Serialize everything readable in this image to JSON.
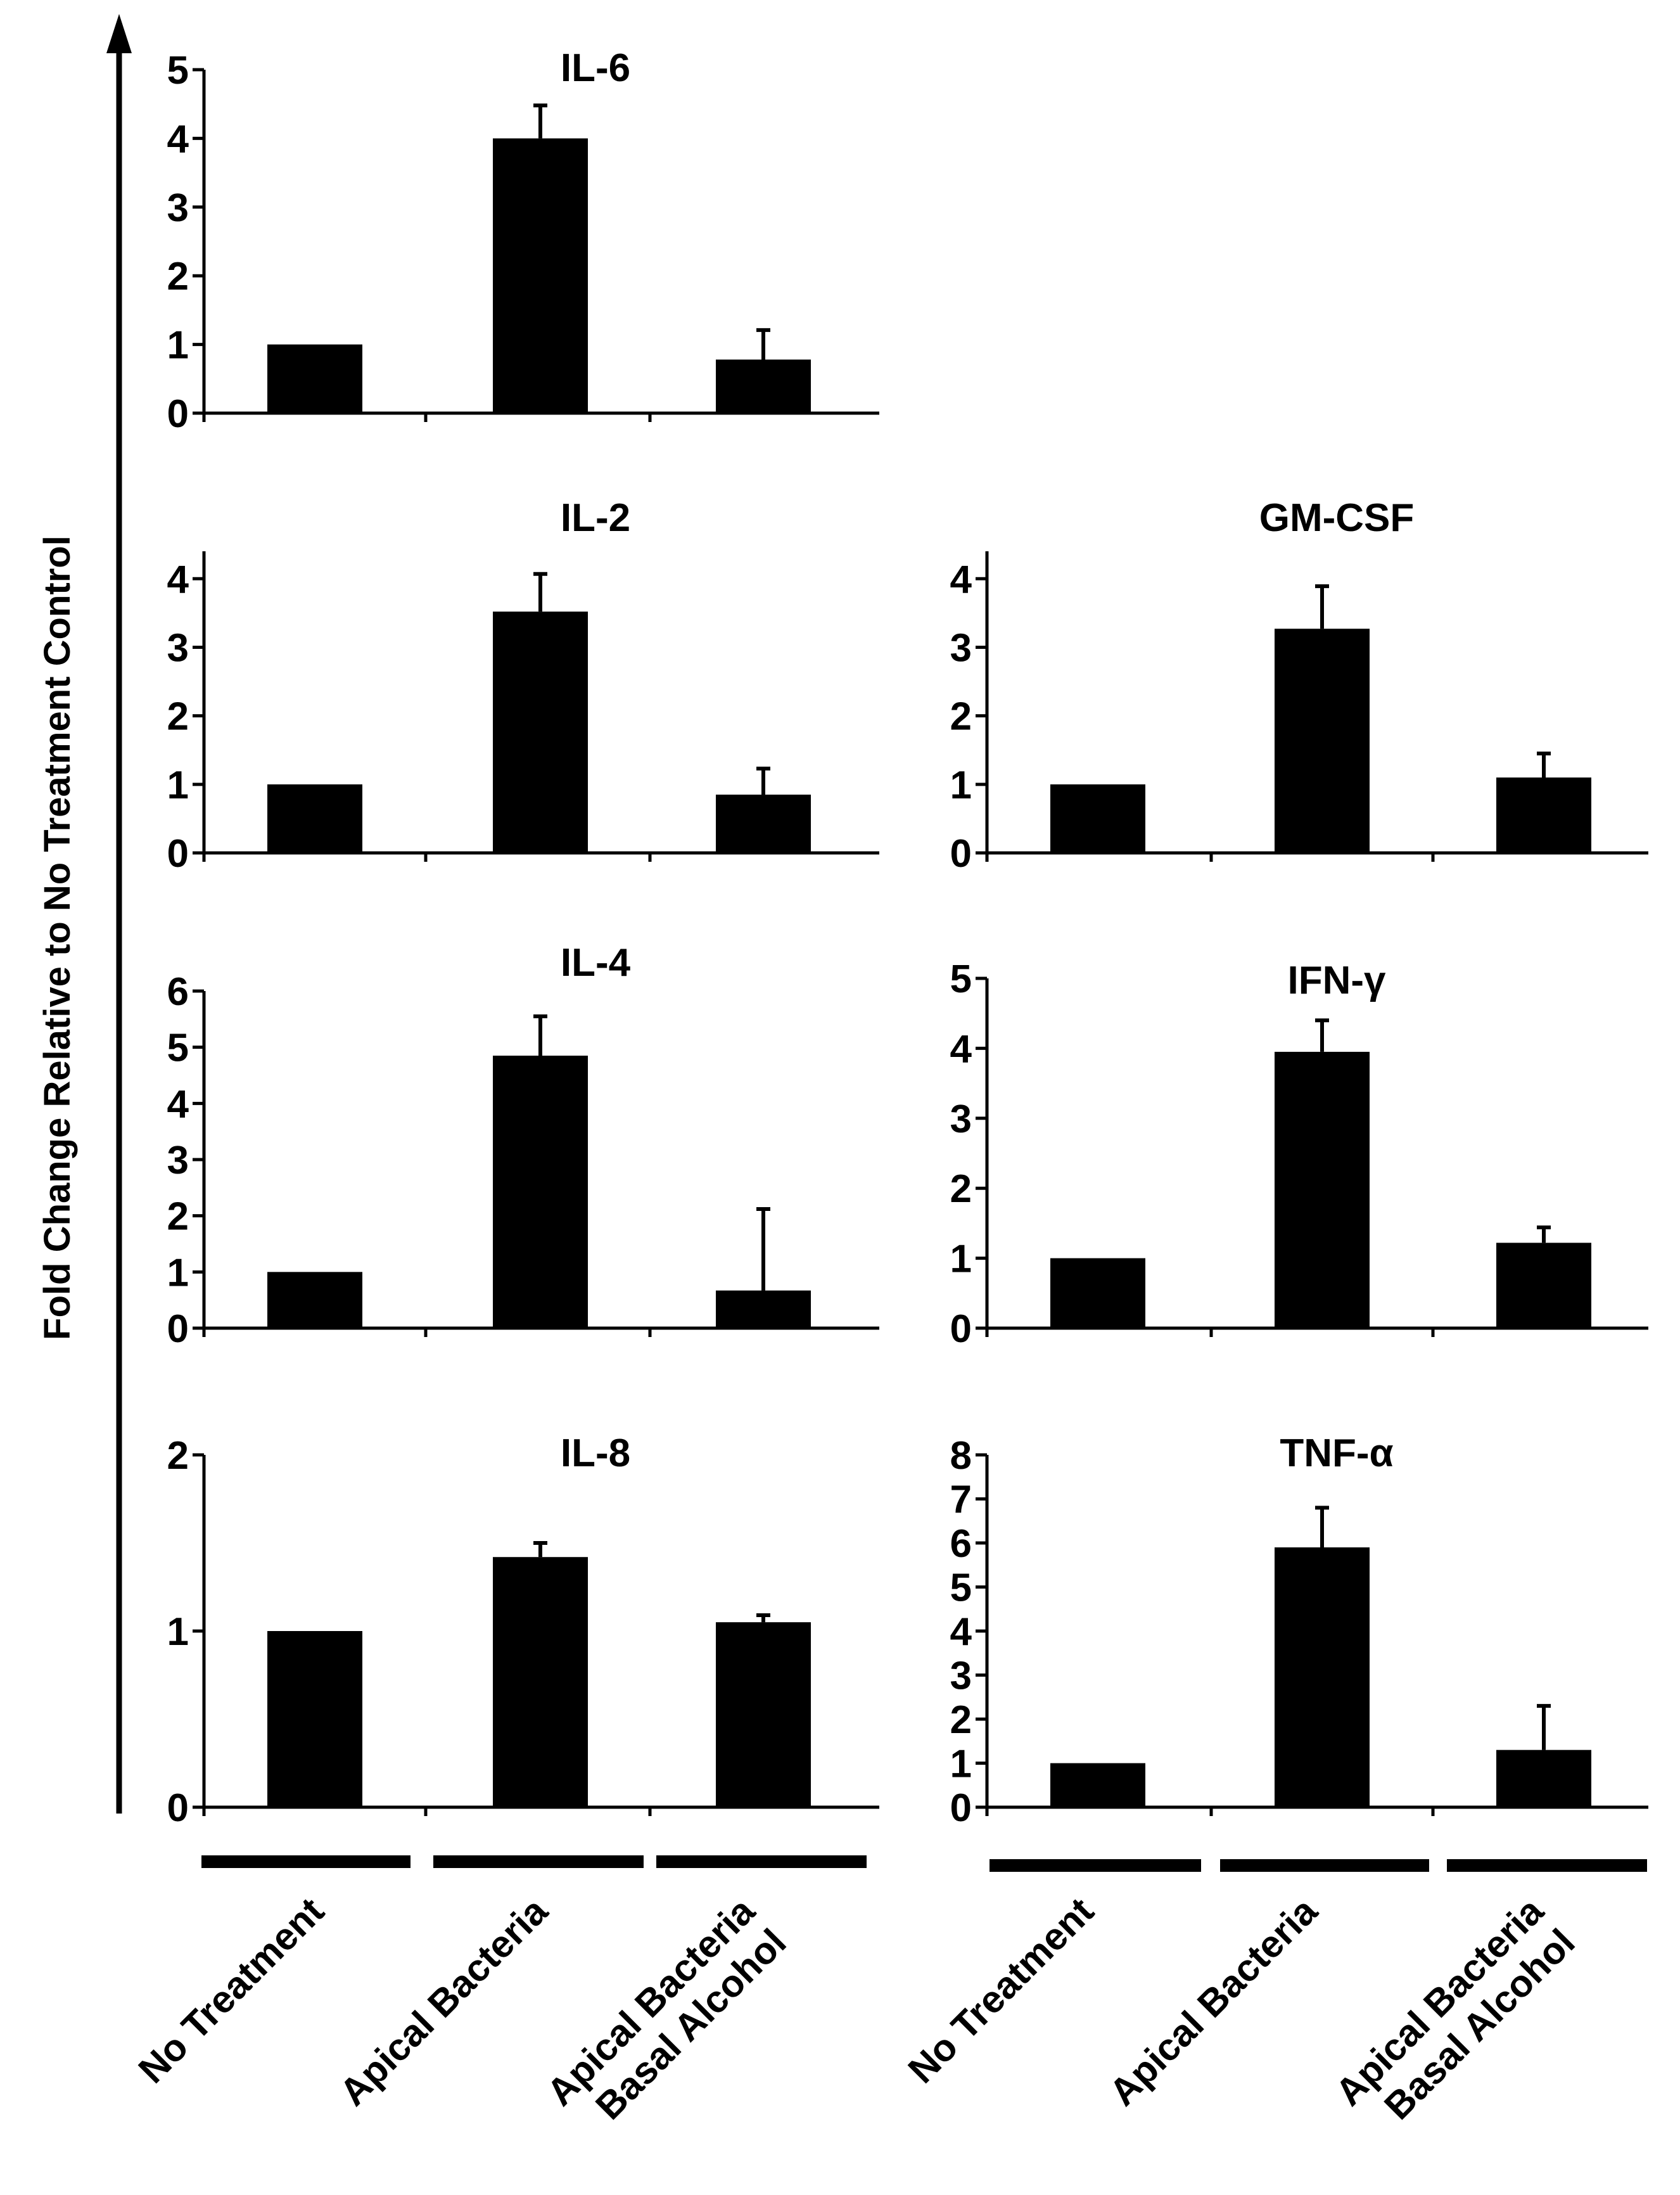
{
  "y_axis_label": "Fold Change Relative to No Treatment Control",
  "groups": [
    {
      "categories": [
        "No Treatment",
        "Apical Bacteria",
        [
          "Apical Bacteria",
          "Basal Alcohol"
        ]
      ]
    },
    {
      "categories": [
        "No Treatment",
        "Apical Bacteria",
        [
          "Apical Bacteria",
          "Basal Alcohol"
        ]
      ]
    }
  ],
  "colors": {
    "bar": "#000000",
    "axis": "#000000",
    "background": "#ffffff"
  },
  "chart_data": [
    {
      "type": "bar",
      "title": "IL-6",
      "categories": [
        "No Treatment",
        "Apical Bacteria",
        "Apical Bacteria Basal Alcohol"
      ],
      "values": [
        1.0,
        4.0,
        0.78
      ],
      "errors": [
        0,
        0.48,
        0.43
      ],
      "ylim": [
        0,
        5
      ],
      "yticks": [
        0,
        1,
        2,
        3,
        4,
        5
      ],
      "ylabel": "Fold Change Relative to No Treatment Control"
    },
    {
      "type": "bar",
      "title": "IL-2",
      "categories": [
        "No Treatment",
        "Apical Bacteria",
        "Apical Bacteria Basal Alcohol"
      ],
      "values": [
        1.0,
        3.52,
        0.85
      ],
      "errors": [
        0,
        0.55,
        0.38
      ],
      "ylim": [
        0,
        4.4
      ],
      "yticks": [
        0,
        1,
        2,
        3,
        4
      ],
      "ylabel": "Fold Change Relative to No Treatment Control"
    },
    {
      "type": "bar",
      "title": "GM-CSF",
      "categories": [
        "No Treatment",
        "Apical Bacteria",
        "Apical Bacteria Basal Alcohol"
      ],
      "values": [
        1.0,
        3.27,
        1.1
      ],
      "errors": [
        0,
        0.62,
        0.35
      ],
      "ylim": [
        0,
        4.4
      ],
      "yticks": [
        0,
        1,
        2,
        3,
        4
      ],
      "ylabel": "Fold Change Relative to No Treatment Control"
    },
    {
      "type": "bar",
      "title": "IL-4",
      "categories": [
        "No Treatment",
        "Apical Bacteria",
        "Apical Bacteria Basal Alcohol"
      ],
      "values": [
        1.0,
        4.85,
        0.67
      ],
      "errors": [
        0,
        0.7,
        1.45
      ],
      "ylim": [
        0,
        6
      ],
      "yticks": [
        0,
        1,
        2,
        3,
        4,
        5,
        6
      ],
      "ylabel": "Fold Change Relative to No Treatment Control"
    },
    {
      "type": "bar",
      "title": "IFN-γ",
      "categories": [
        "No Treatment",
        "Apical Bacteria",
        "Apical Bacteria Basal Alcohol"
      ],
      "values": [
        1.0,
        3.95,
        1.22
      ],
      "errors": [
        0,
        0.45,
        0.22
      ],
      "ylim": [
        0,
        5
      ],
      "yticks": [
        0,
        1,
        2,
        3,
        4,
        5
      ],
      "ylabel": "Fold Change Relative to No Treatment Control"
    },
    {
      "type": "bar",
      "title": "IL-8",
      "categories": [
        "No Treatment",
        "Apical Bacteria",
        "Apical Bacteria Basal Alcohol"
      ],
      "values": [
        1.0,
        1.42,
        1.05
      ],
      "errors": [
        0,
        0.08,
        0.04
      ],
      "ylim": [
        0,
        2
      ],
      "yticks": [
        0,
        1,
        2
      ],
      "ylabel": "Fold Change Relative to No Treatment Control"
    },
    {
      "type": "bar",
      "title": "TNF-α",
      "categories": [
        "No Treatment",
        "Apical Bacteria",
        "Apical Bacteria Basal Alcohol"
      ],
      "values": [
        1.0,
        5.9,
        1.3
      ],
      "errors": [
        0,
        0.9,
        1.0
      ],
      "ylim": [
        0,
        8
      ],
      "yticks": [
        0,
        1,
        2,
        3,
        4,
        5,
        6,
        7,
        8
      ],
      "ylabel": "Fold Change Relative to No Treatment Control"
    }
  ]
}
